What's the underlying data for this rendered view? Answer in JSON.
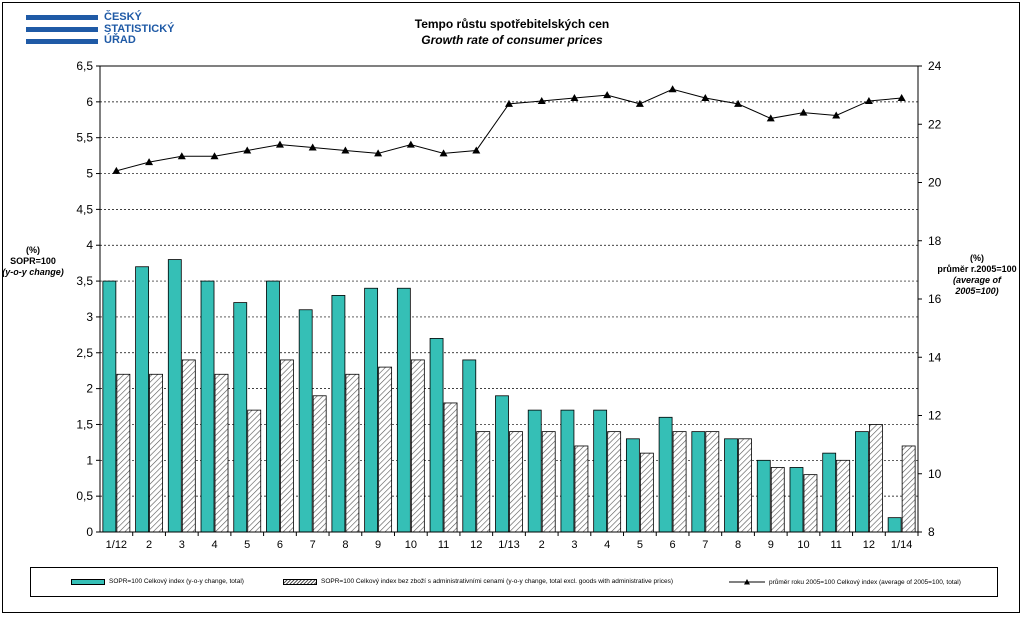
{
  "logo": {
    "line1": "ČESKÝ",
    "line2": "STATISTICKÝ",
    "line3": "ÚŘAD"
  },
  "chart_data": {
    "type": "bar",
    "title": "Tempo růstu spotřebitelských  cen",
    "subtitle": "Growth rate of consumer  prices",
    "ylabel_left": {
      "line1": "(%)",
      "line2": "SOPR=100",
      "line3": "(y-o-y change)"
    },
    "ylabel_right": {
      "line1": "(%)",
      "line2": "průměr r.2005=100",
      "line3": "(average of 2005=100)"
    },
    "ylim_left": [
      0,
      6.5
    ],
    "yticks_left": [
      "0",
      "0,5",
      "1",
      "1,5",
      "2",
      "2,5",
      "3",
      "3,5",
      "4",
      "4,5",
      "5",
      "5,5",
      "6",
      "6,5"
    ],
    "ylim_right": [
      8,
      24
    ],
    "yticks_right": [
      "8",
      "10",
      "12",
      "14",
      "16",
      "18",
      "20",
      "22",
      "24"
    ],
    "grid": true,
    "legend_position": "bottom",
    "categories": [
      "1/12",
      "2",
      "3",
      "4",
      "5",
      "6",
      "7",
      "8",
      "9",
      "10",
      "11",
      "12",
      "1/13",
      "2",
      "3",
      "4",
      "5",
      "6",
      "7",
      "8",
      "9",
      "10",
      "11",
      "12",
      "1/14"
    ],
    "series": [
      {
        "name": "SOPR=100  Celkový  index  (y-o-y  change,  total)",
        "type": "bar",
        "color": "#35bfb6",
        "values": [
          3.5,
          3.7,
          3.8,
          3.5,
          3.2,
          3.5,
          3.1,
          3.3,
          3.4,
          3.4,
          2.7,
          2.4,
          1.9,
          1.7,
          1.7,
          1.7,
          1.3,
          1.6,
          1.4,
          1.3,
          1.0,
          0.9,
          1.1,
          1.4,
          0.2
        ]
      },
      {
        "name": "SOPR=100  Celkový  index  bez  zboží  s  administrativními  cenami  (y-o-y  change,  total  excl.  goods  with  administrative  prices)",
        "type": "bar",
        "pattern": "hatch",
        "values": [
          2.2,
          2.2,
          2.4,
          2.2,
          1.7,
          2.4,
          1.9,
          2.2,
          2.3,
          2.4,
          1.8,
          1.4,
          1.4,
          1.4,
          1.2,
          1.4,
          1.1,
          1.4,
          1.4,
          1.3,
          0.9,
          0.8,
          1.0,
          1.5,
          1.2
        ]
      },
      {
        "name": "průměr  roku  2005=100  Celkový  index  (average  of  2005=100,  total)",
        "type": "line",
        "axis": "right",
        "marker": "triangle",
        "values": [
          20.4,
          20.7,
          20.9,
          20.9,
          21.1,
          21.3,
          21.2,
          21.1,
          21.0,
          21.3,
          21.0,
          21.1,
          22.7,
          22.8,
          22.9,
          23.0,
          22.7,
          23.2,
          22.9,
          22.7,
          22.2,
          22.4,
          22.3,
          22.8,
          22.9
        ]
      }
    ]
  }
}
